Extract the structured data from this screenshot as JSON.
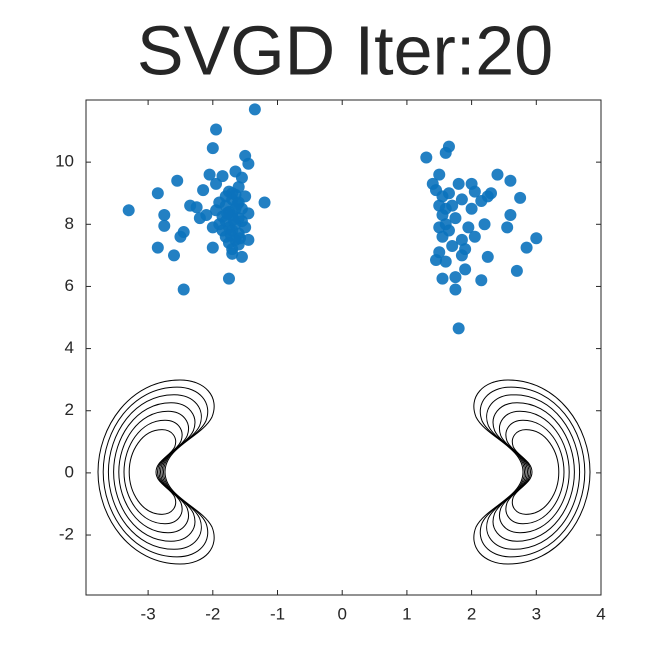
{
  "chart_data": {
    "type": "scatter",
    "title": "SVGD Iter:20",
    "color": "#0b72bd",
    "x": [
      -3.3,
      -2.85,
      -2.75,
      -2.75,
      -2.85,
      -2.55,
      -2.6,
      -2.5,
      -2.45,
      -2.45,
      -2.35,
      -2.25,
      -2.0,
      -1.95,
      -2.05,
      -2.1,
      -2.2,
      -2.0,
      -1.75,
      -1.35,
      -1.5,
      -1.45,
      -1.2,
      -1.45,
      -1.55,
      -1.95,
      -1.85,
      -2.15,
      -1.65,
      -1.7,
      -1.75,
      -1.65,
      -1.8,
      -1.6,
      -1.7,
      -1.75,
      -1.65,
      -1.8,
      -1.6,
      -1.7,
      -1.75,
      -1.65,
      -1.8,
      -1.6,
      -1.7,
      -1.65,
      -1.75,
      -1.6,
      -1.7,
      -1.85,
      -1.55,
      -1.55,
      -1.85,
      -1.9,
      -1.5,
      -1.5,
      -1.7,
      -1.6,
      -1.8,
      -1.68,
      -1.72,
      -1.62,
      -1.78,
      -1.58,
      -1.45,
      -1.9,
      -2.0,
      -1.95,
      -1.55,
      1.3,
      1.65,
      1.6,
      1.5,
      1.4,
      1.45,
      1.55,
      1.5,
      1.55,
      1.6,
      1.55,
      1.5,
      1.6,
      1.55,
      1.75,
      1.75,
      1.8,
      1.9,
      1.7,
      1.85,
      1.65,
      1.75,
      1.7,
      1.8,
      2.0,
      2.05,
      2.15,
      2.25,
      2.2,
      1.95,
      2.05,
      1.9,
      2.15,
      2.25,
      2.4,
      2.6,
      2.75,
      2.6,
      2.55,
      2.85,
      3.0,
      2.7,
      1.65,
      1.85,
      2.0,
      1.6,
      1.5,
      1.45,
      1.85,
      2.3
    ],
    "y": [
      8.45,
      9.0,
      8.3,
      7.95,
      7.25,
      9.4,
      7.0,
      7.6,
      7.75,
      5.9,
      8.6,
      8.55,
      10.45,
      11.05,
      9.6,
      8.3,
      8.2,
      7.25,
      6.25,
      11.7,
      10.2,
      9.95,
      8.7,
      7.5,
      6.95,
      9.3,
      9.55,
      9.1,
      9.7,
      7.2,
      7.4,
      7.5,
      7.6,
      7.7,
      7.8,
      7.9,
      8.0,
      8.1,
      8.2,
      8.3,
      8.4,
      8.5,
      8.6,
      8.7,
      8.8,
      8.95,
      9.05,
      9.2,
      9.0,
      8.25,
      8.1,
      8.5,
      7.8,
      8.0,
      8.9,
      7.9,
      7.05,
      7.35,
      8.9,
      8.15,
      7.65,
      8.65,
      8.35,
      7.55,
      8.35,
      8.7,
      7.9,
      8.45,
      9.5,
      10.15,
      10.5,
      10.3,
      9.6,
      9.3,
      9.1,
      8.9,
      8.6,
      8.3,
      8.0,
      7.6,
      7.1,
      6.8,
      6.25,
      6.3,
      5.9,
      4.65,
      6.55,
      7.3,
      7.5,
      7.8,
      8.2,
      8.6,
      9.3,
      9.3,
      9.05,
      8.75,
      8.9,
      8.0,
      7.9,
      7.6,
      7.2,
      6.2,
      6.95,
      9.6,
      9.4,
      8.85,
      8.3,
      7.9,
      7.25,
      7.55,
      6.5,
      9.0,
      8.8,
      8.5,
      8.5,
      7.9,
      6.85,
      7.0,
      9.0
    ],
    "xlim": [
      -3.96,
      4
    ],
    "ylim": [
      -3.93,
      12
    ],
    "xticks": [
      -3,
      -2,
      -1,
      0,
      1,
      2,
      3,
      4
    ],
    "yticks": [
      -2,
      0,
      2,
      4,
      6,
      8,
      10
    ]
  }
}
